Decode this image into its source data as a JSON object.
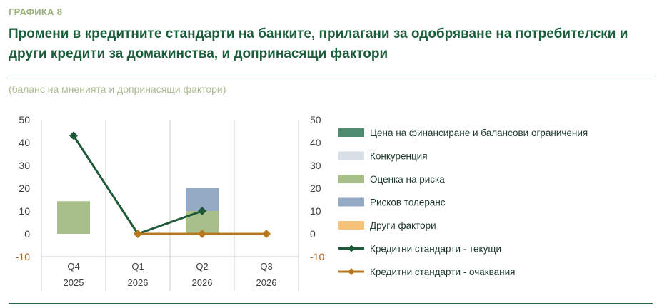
{
  "header": {
    "label": "ГРАФИКА 8",
    "title_line1": "Промени в кредитните стандарти на банките, прилагани за одобряване на потребителски и",
    "title_line2": "други кредити за домакинства, и допринасящи фактори",
    "subtitle": "(баланс на мненията и допринасящи фактори)"
  },
  "colors": {
    "brand": "#1b5e3b",
    "funding": "#4e8c72",
    "competition": "#d9dde6",
    "risk_assessment": "#a8bf8a",
    "risk_tolerance": "#93a9c4",
    "other": "#f5c27a",
    "current": "#1e5a37",
    "expected": "#b7791f"
  },
  "chart_data": {
    "type": "bar",
    "stacked": true,
    "categories": [
      {
        "quarter": "Q4",
        "year": "2025"
      },
      {
        "quarter": "Q1",
        "year": "2026"
      },
      {
        "quarter": "Q2",
        "year": "2026"
      },
      {
        "quarter": "Q3",
        "year": "2026"
      }
    ],
    "ylim": [
      -10,
      50
    ],
    "yticks": [
      "50",
      "40",
      "30",
      "20",
      "10",
      "0",
      "-10"
    ],
    "grid": "vertical category separators",
    "legend_position": "right",
    "series": [
      {
        "name": "Цена на финансиране и балансови ограничения",
        "type": "bar",
        "color_key": "funding",
        "values": [
          0,
          0,
          0,
          null
        ]
      },
      {
        "name": "Конкуренция",
        "type": "bar",
        "color_key": "competition",
        "values": [
          0,
          0,
          0,
          null
        ]
      },
      {
        "name": "Оценка на риска",
        "type": "bar",
        "color_key": "risk_assessment",
        "values": [
          14.3,
          0,
          10,
          null
        ]
      },
      {
        "name": "Рисков толеранс",
        "type": "bar",
        "color_key": "risk_tolerance",
        "values": [
          0,
          0,
          10,
          null
        ]
      },
      {
        "name": "Други фактори",
        "type": "bar",
        "color_key": "other",
        "values": [
          0,
          0,
          0,
          null
        ]
      },
      {
        "name": "Кредитни стандарти - текущи",
        "type": "line",
        "color_key": "current",
        "values": [
          43,
          0,
          10,
          null
        ]
      },
      {
        "name": "Кредитни стандарти - очаквания",
        "type": "line",
        "color_key": "expected",
        "values": [
          null,
          0,
          0,
          0
        ]
      }
    ]
  }
}
